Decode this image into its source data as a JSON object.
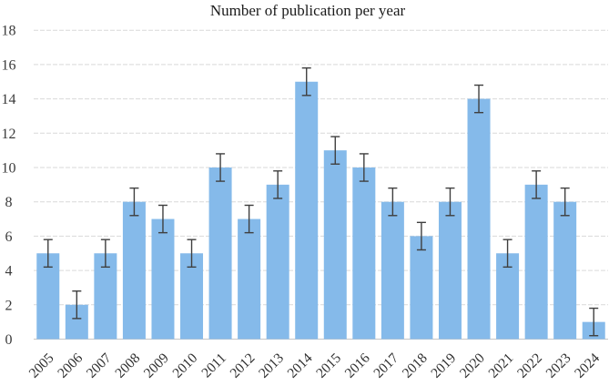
{
  "chart_data": {
    "type": "bar",
    "title": "Number of publication per year",
    "categories": [
      "2005",
      "2006",
      "2007",
      "2008",
      "2009",
      "2010",
      "2011",
      "2012",
      "2013",
      "2014",
      "2015",
      "2016",
      "2017",
      "2018",
      "2019",
      "2020",
      "2021",
      "2022",
      "2023",
      "2024"
    ],
    "values": [
      5,
      2,
      5,
      8,
      7,
      5,
      10,
      7,
      9,
      15,
      11,
      10,
      8,
      6,
      8,
      14,
      5,
      9,
      8,
      1
    ],
    "error_bars": {
      "symmetric": true,
      "value": 0.8
    },
    "xlabel": "",
    "ylabel": "",
    "ylim": [
      0,
      18
    ],
    "ytick_step": 2,
    "ytick_labels": [
      "0",
      "2",
      "4",
      "6",
      "8",
      "10",
      "12",
      "14",
      "16",
      "18"
    ],
    "grid": "horizontal-dashed",
    "legend": "none",
    "colors": {
      "bar_fill": "#85BAEA",
      "error_bar": "#3F3F3F",
      "gridline": "#D9D9D9",
      "axis_line": "#C6C6C6",
      "tick_text": "#2E2E2E",
      "title_text": "#1A1A1A"
    }
  }
}
